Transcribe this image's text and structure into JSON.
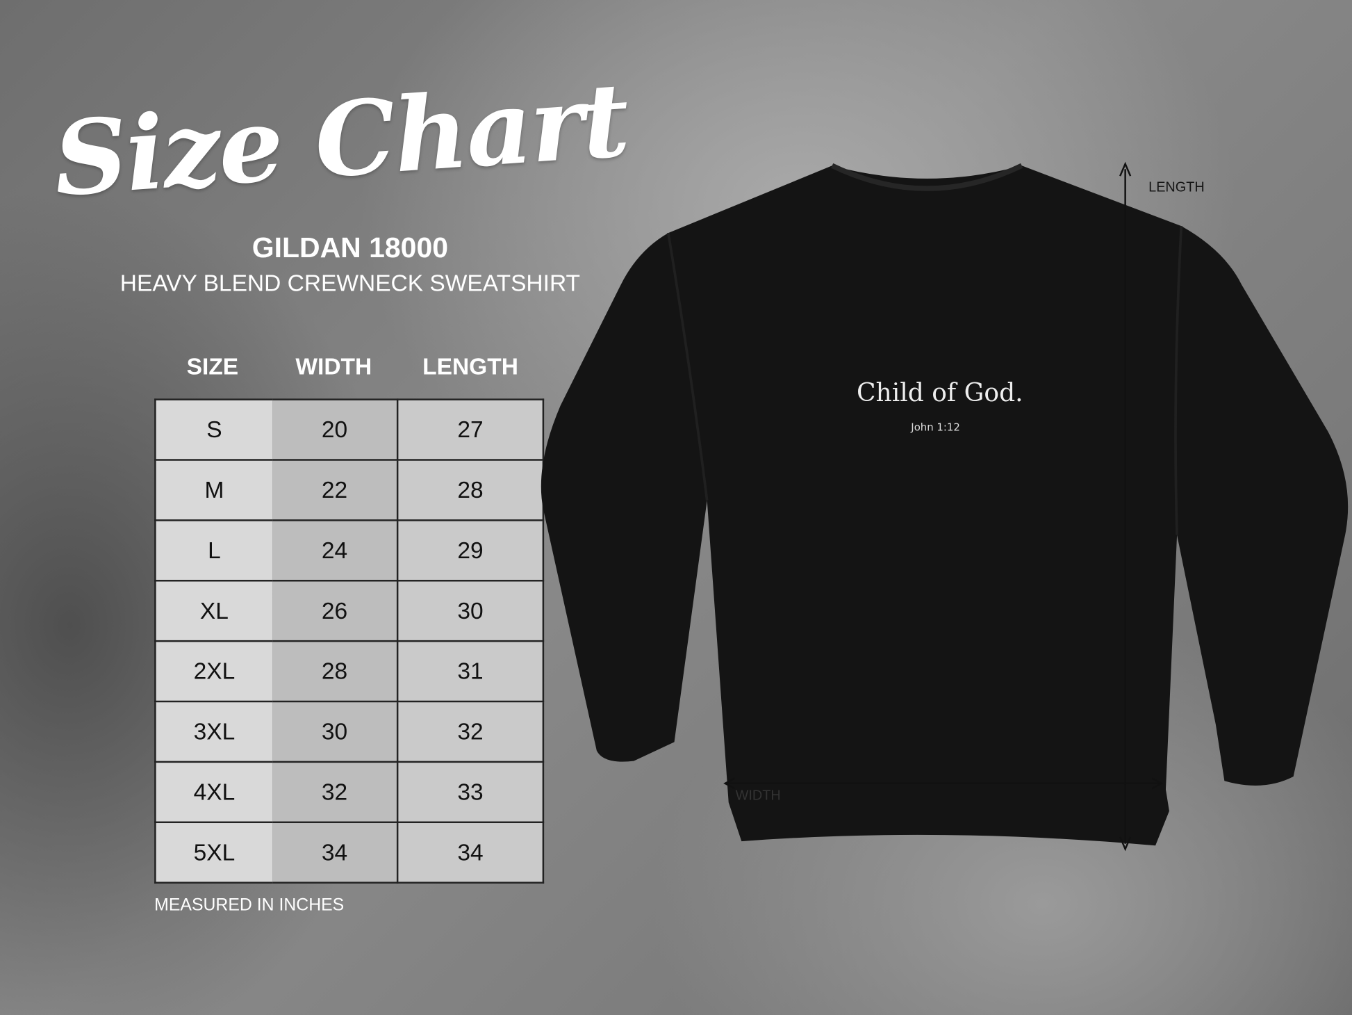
{
  "title": "Size Chart",
  "product_code": "GILDAN 18000",
  "product_name": "HEAVY BLEND CREWNECK SWEATSHIRT",
  "table": {
    "headers": [
      "SIZE",
      "WIDTH",
      "LENGTH"
    ],
    "rows": [
      [
        "S",
        "20",
        "27"
      ],
      [
        "M",
        "22",
        "28"
      ],
      [
        "L",
        "24",
        "29"
      ],
      [
        "XL",
        "26",
        "30"
      ],
      [
        "2XL",
        "28",
        "31"
      ],
      [
        "3XL",
        "30",
        "32"
      ],
      [
        "4XL",
        "32",
        "33"
      ],
      [
        "5XL",
        "34",
        "34"
      ]
    ]
  },
  "note": "MEASURED IN INCHES",
  "garment": {
    "color": "#141414",
    "print_title": "Child of God.",
    "print_subtitle": "John 1:12",
    "length_label": "LENGTH",
    "width_label": "WIDTH"
  }
}
